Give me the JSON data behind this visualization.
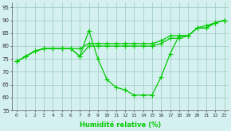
{
  "x": [
    0,
    1,
    2,
    3,
    4,
    5,
    6,
    7,
    8,
    9,
    10,
    11,
    12,
    13,
    14,
    15,
    16,
    17,
    18,
    19,
    20,
    21,
    22,
    23
  ],
  "line_dip": [
    74,
    76,
    78,
    79,
    79,
    79,
    79,
    76,
    86,
    75,
    67,
    64,
    63,
    61,
    61,
    61,
    68,
    77,
    84,
    84,
    87,
    87,
    89,
    90
  ],
  "line_mid1": [
    74,
    76,
    78,
    79,
    79,
    79,
    79,
    79,
    81,
    81,
    81,
    81,
    81,
    81,
    81,
    81,
    82,
    84,
    84,
    84,
    87,
    88,
    89,
    90
  ],
  "line_mid2": [
    74,
    76,
    78,
    79,
    79,
    79,
    79,
    76,
    80,
    80,
    80,
    80,
    80,
    80,
    80,
    80,
    81,
    83,
    83,
    84,
    87,
    87,
    89,
    90
  ],
  "ylim": [
    55,
    97
  ],
  "xlim": [
    -0.5,
    23.5
  ],
  "yticks": [
    55,
    60,
    65,
    70,
    75,
    80,
    85,
    90,
    95
  ],
  "xticks": [
    0,
    1,
    2,
    3,
    4,
    5,
    6,
    7,
    8,
    9,
    10,
    11,
    12,
    13,
    14,
    15,
    16,
    17,
    18,
    19,
    20,
    21,
    22,
    23
  ],
  "xlabel": "Humidité relative (%)",
  "line_color": "#00cc00",
  "bg_color": "#d5f0f0",
  "grid_color": "#99ccbb",
  "marker": "+",
  "marker_size": 4,
  "lw": 0.9
}
